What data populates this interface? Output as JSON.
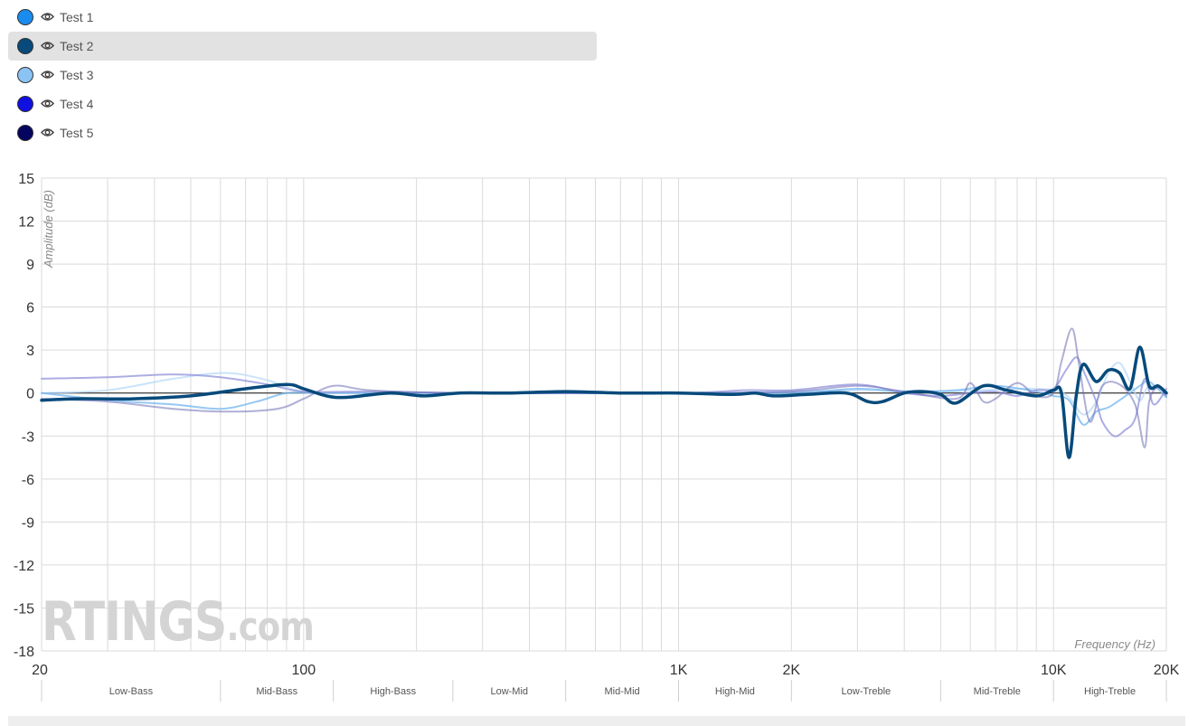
{
  "legend": {
    "items": [
      {
        "label": "Test 1",
        "color": "#1a8cf0",
        "selected": false
      },
      {
        "label": "Test 2",
        "color": "#074a7b",
        "selected": true
      },
      {
        "label": "Test 3",
        "color": "#8cc3f5",
        "selected": false
      },
      {
        "label": "Test 4",
        "color": "#1010e0",
        "selected": false
      },
      {
        "label": "Test 5",
        "color": "#050560",
        "selected": false
      }
    ],
    "icon": "eye-icon"
  },
  "watermark": {
    "main": "RTINGS",
    "suffix": ".com"
  },
  "chart_data": {
    "type": "line",
    "x_scale": "log",
    "xlabel": "Frequency (Hz)",
    "ylabel": "Amplitude (dB)",
    "xlim": [
      20,
      20000
    ],
    "ylim": [
      -18,
      15
    ],
    "y_ticks": [
      15,
      12,
      9,
      6,
      3,
      0,
      -3,
      -6,
      -9,
      -12,
      -15,
      -18
    ],
    "x_tick_labels": [
      {
        "value": 20,
        "label": "20"
      },
      {
        "value": 100,
        "label": "100"
      },
      {
        "value": 1000,
        "label": "1K"
      },
      {
        "value": 2000,
        "label": "2K"
      },
      {
        "value": 10000,
        "label": "10K"
      },
      {
        "value": 20000,
        "label": "20K"
      }
    ],
    "bands": [
      {
        "label": "Low-Bass",
        "from": 20,
        "to": 60
      },
      {
        "label": "Mid-Bass",
        "from": 60,
        "to": 120
      },
      {
        "label": "High-Bass",
        "from": 120,
        "to": 250
      },
      {
        "label": "Low-Mid",
        "from": 250,
        "to": 500
      },
      {
        "label": "Mid-Mid",
        "from": 500,
        "to": 1000
      },
      {
        "label": "High-Mid",
        "from": 1000,
        "to": 2000
      },
      {
        "label": "Low-Treble",
        "from": 2000,
        "to": 5000
      },
      {
        "label": "Mid-Treble",
        "from": 5000,
        "to": 10000
      },
      {
        "label": "High-Treble",
        "from": 10000,
        "to": 20000
      }
    ],
    "grid": true,
    "series": [
      {
        "name": "Test 1",
        "color": "#b8daf8",
        "opacity": 0.75,
        "points": [
          [
            20,
            0
          ],
          [
            30,
            0.2
          ],
          [
            45,
            1.0
          ],
          [
            62,
            1.4
          ],
          [
            80,
            0.9
          ],
          [
            100,
            0.1
          ],
          [
            150,
            0
          ],
          [
            300,
            0
          ],
          [
            1000,
            0
          ],
          [
            2000,
            0.1
          ],
          [
            3000,
            0.2
          ],
          [
            5000,
            0.1
          ],
          [
            8000,
            0.3
          ],
          [
            10000,
            0.2
          ],
          [
            11000,
            -0.3
          ],
          [
            12000,
            -1.5
          ],
          [
            13000,
            -0.6
          ],
          [
            14000,
            1.4
          ],
          [
            15000,
            2.1
          ],
          [
            16000,
            0.8
          ],
          [
            17000,
            -0.5
          ],
          [
            18000,
            0.5
          ],
          [
            20000,
            0.1
          ]
        ]
      },
      {
        "name": "Test 3",
        "color": "#7cbaf0",
        "opacity": 0.8,
        "points": [
          [
            20,
            0
          ],
          [
            30,
            -0.5
          ],
          [
            45,
            -0.8
          ],
          [
            60,
            -1.1
          ],
          [
            75,
            -0.6
          ],
          [
            90,
            0
          ],
          [
            110,
            0
          ],
          [
            200,
            0
          ],
          [
            500,
            0
          ],
          [
            1000,
            0
          ],
          [
            2000,
            0
          ],
          [
            3000,
            0.3
          ],
          [
            4000,
            0.1
          ],
          [
            5500,
            0.2
          ],
          [
            7000,
            0.5
          ],
          [
            9000,
            0.1
          ],
          [
            10000,
            -0.2
          ],
          [
            11000,
            -0.5
          ],
          [
            12000,
            -2.2
          ],
          [
            13000,
            -1.3
          ],
          [
            14000,
            -1.0
          ],
          [
            15000,
            -0.5
          ],
          [
            17000,
            0.5
          ],
          [
            18000,
            0.8
          ],
          [
            20000,
            -0.3
          ]
        ]
      },
      {
        "name": "Test 4",
        "color": "#8a8ad8",
        "opacity": 0.7,
        "points": [
          [
            20,
            1.0
          ],
          [
            30,
            1.1
          ],
          [
            45,
            1.3
          ],
          [
            60,
            1.1
          ],
          [
            80,
            0.6
          ],
          [
            100,
            0.1
          ],
          [
            150,
            0.1
          ],
          [
            300,
            0
          ],
          [
            1000,
            0
          ],
          [
            1500,
            0.2
          ],
          [
            2000,
            0.2
          ],
          [
            3000,
            0.6
          ],
          [
            4000,
            0
          ],
          [
            5000,
            -0.2
          ],
          [
            6000,
            0
          ],
          [
            7000,
            0.1
          ],
          [
            8000,
            -0.2
          ],
          [
            9000,
            0.2
          ],
          [
            10000,
            0.3
          ],
          [
            10800,
            1.6
          ],
          [
            11500,
            2.5
          ],
          [
            12000,
            1.6
          ],
          [
            13000,
            -0.6
          ],
          [
            13500,
            -2.0
          ],
          [
            14500,
            -3.0
          ],
          [
            15500,
            -2.6
          ],
          [
            16500,
            -1.8
          ],
          [
            17500,
            1.0
          ],
          [
            18500,
            -0.8
          ],
          [
            20000,
            0.3
          ]
        ]
      },
      {
        "name": "Test 5",
        "color": "#6e6eb4",
        "opacity": 0.55,
        "points": [
          [
            20,
            -0.4
          ],
          [
            30,
            -0.6
          ],
          [
            45,
            -1.1
          ],
          [
            62,
            -1.3
          ],
          [
            85,
            -1.1
          ],
          [
            100,
            -0.4
          ],
          [
            120,
            0.5
          ],
          [
            150,
            0.2
          ],
          [
            250,
            0
          ],
          [
            500,
            0
          ],
          [
            1000,
            0
          ],
          [
            2000,
            0.1
          ],
          [
            3000,
            0.5
          ],
          [
            4000,
            0.1
          ],
          [
            5500,
            -0.4
          ],
          [
            6000,
            0.7
          ],
          [
            6500,
            -0.6
          ],
          [
            7000,
            -0.4
          ],
          [
            8000,
            0.7
          ],
          [
            9000,
            -0.2
          ],
          [
            10000,
            0
          ],
          [
            10500,
            2.2
          ],
          [
            11200,
            4.5
          ],
          [
            11700,
            2.0
          ],
          [
            12500,
            -2.0
          ],
          [
            13500,
            0.5
          ],
          [
            15000,
            0.6
          ],
          [
            16500,
            -0.8
          ],
          [
            17500,
            -3.8
          ],
          [
            18000,
            -0.6
          ],
          [
            19000,
            0.4
          ],
          [
            20000,
            -0.2
          ]
        ]
      },
      {
        "name": "Test 2",
        "color": "#074a7b",
        "opacity": 1,
        "width": 3.5,
        "points": [
          [
            20,
            -0.5
          ],
          [
            25,
            -0.4
          ],
          [
            35,
            -0.4
          ],
          [
            50,
            -0.2
          ],
          [
            70,
            0.3
          ],
          [
            90,
            0.6
          ],
          [
            100,
            0.3
          ],
          [
            115,
            -0.2
          ],
          [
            130,
            -0.3
          ],
          [
            170,
            0
          ],
          [
            210,
            -0.2
          ],
          [
            260,
            0
          ],
          [
            350,
            0
          ],
          [
            500,
            0.1
          ],
          [
            700,
            0
          ],
          [
            1000,
            0
          ],
          [
            1400,
            -0.1
          ],
          [
            1600,
            0
          ],
          [
            1800,
            -0.2
          ],
          [
            2200,
            -0.1
          ],
          [
            2800,
            0
          ],
          [
            3200,
            -0.6
          ],
          [
            3500,
            -0.6
          ],
          [
            4000,
            0
          ],
          [
            4500,
            0.1
          ],
          [
            5000,
            -0.1
          ],
          [
            5500,
            -0.7
          ],
          [
            6500,
            0.5
          ],
          [
            7500,
            0.2
          ],
          [
            9000,
            -0.2
          ],
          [
            10000,
            0.2
          ],
          [
            10500,
            0
          ],
          [
            11000,
            -4.5
          ],
          [
            11500,
            -0.2
          ],
          [
            12000,
            2.0
          ],
          [
            13000,
            0.8
          ],
          [
            14000,
            1.6
          ],
          [
            15000,
            1.4
          ],
          [
            16000,
            0.3
          ],
          [
            17000,
            3.2
          ],
          [
            18000,
            0.5
          ],
          [
            19000,
            0.5
          ],
          [
            20000,
            0
          ]
        ]
      }
    ]
  }
}
